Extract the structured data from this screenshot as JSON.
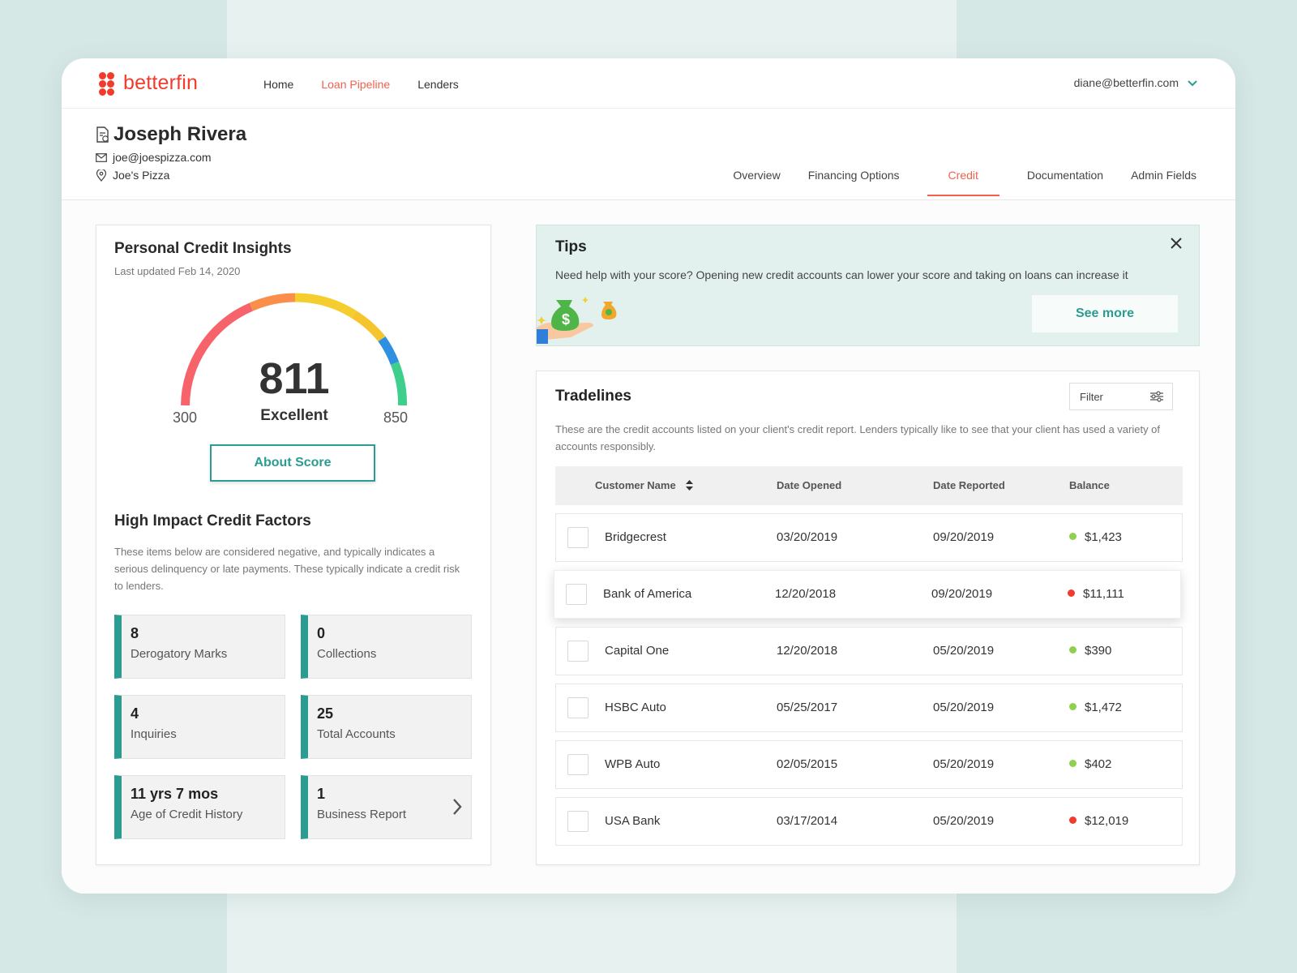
{
  "brand": {
    "name": "betterfin",
    "color": "#f03b2d"
  },
  "nav": {
    "links": [
      "Home",
      "Loan Pipeline",
      "Lenders"
    ],
    "active_index": 1,
    "user_email": "diane@betterfin.com"
  },
  "client": {
    "name": "Joseph Rivera",
    "email": "joe@joespizza.com",
    "business": "Joe's Pizza"
  },
  "subtabs": {
    "items": [
      "Overview",
      "Financing Options",
      "Credit",
      "Documentation",
      "Admin Fields"
    ],
    "active_index": 2
  },
  "credit_insights": {
    "title": "Personal Credit Insights",
    "last_updated": "Last updated Feb 14, 2020",
    "score": "811",
    "rating": "Excellent",
    "min": "300",
    "max": "850",
    "about_button": "About Score"
  },
  "factors": {
    "title": "High Impact Credit Factors",
    "description": "These items below are considered negative, and typically indicates a serious delinquency or late payments. These typically indicate a credit risk to lenders.",
    "items": [
      {
        "value": "8",
        "label": "Derogatory Marks"
      },
      {
        "value": "0",
        "label": "Collections"
      },
      {
        "value": "4",
        "label": "Inquiries"
      },
      {
        "value": "25",
        "label": "Total Accounts"
      },
      {
        "value": "11 yrs 7 mos",
        "label": "Age of Credit History"
      },
      {
        "value": "1",
        "label": "Business Report"
      }
    ]
  },
  "tips": {
    "title": "Tips",
    "text": "Need help with your score? Opening new credit accounts can lower your score and taking on loans can increase it",
    "button": "See more"
  },
  "tradelines": {
    "title": "Tradelines",
    "filter_label": "Filter",
    "description": "These are the credit accounts listed on your client's credit report. Lenders typically like to see that your client has used a variety of accounts responsibly.",
    "columns": [
      "Customer Name",
      "Date Opened",
      "Date Reported",
      "Balance"
    ],
    "rows": [
      {
        "name": "Bridgecrest",
        "opened": "03/20/2019",
        "reported": "09/20/2019",
        "balance": "$1,423",
        "status": "good"
      },
      {
        "name": "Bank of America",
        "opened": "12/20/2018",
        "reported": "09/20/2019",
        "balance": "$11,111",
        "status": "bad"
      },
      {
        "name": "Capital One",
        "opened": "12/20/2018",
        "reported": "05/20/2019",
        "balance": "$390",
        "status": "good"
      },
      {
        "name": "HSBC Auto",
        "opened": "05/25/2017",
        "reported": "05/20/2019",
        "balance": "$1,472",
        "status": "good"
      },
      {
        "name": "WPB Auto",
        "opened": "02/05/2015",
        "reported": "05/20/2019",
        "balance": "$402",
        "status": "good"
      },
      {
        "name": "USA Bank",
        "opened": "03/17/2014",
        "reported": "05/20/2019",
        "balance": "$12,019",
        "status": "bad"
      }
    ]
  },
  "colors": {
    "accent": "#2b9c91",
    "active": "#f0624f",
    "good": "#8fd14f",
    "bad": "#f03b2d"
  },
  "icons": [
    "logo-dots-icon",
    "chevron-down-icon",
    "document-icon",
    "mail-icon",
    "location-icon",
    "close-icon",
    "money-bag-hand-icon",
    "filter-sliders-icon",
    "sort-icon",
    "chevron-right-icon"
  ]
}
